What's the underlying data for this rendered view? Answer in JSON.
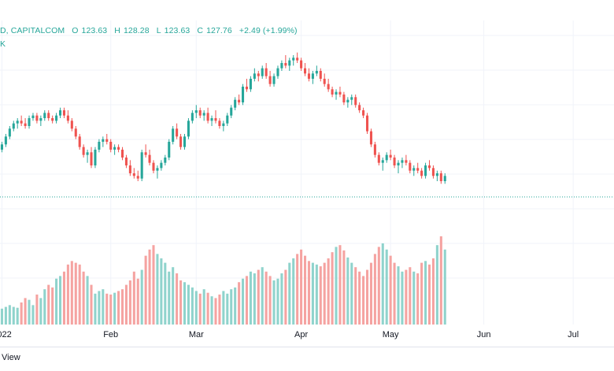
{
  "legend": {
    "symbol": "D, CAPITALCOM",
    "open_label": "O",
    "open": "123.63",
    "high_label": "H",
    "high": "128.28",
    "low_label": "L",
    "low": "123.63",
    "close_label": "C",
    "close": "127.76",
    "change": "+2.49 (+1.99%)",
    "volume_label": "K"
  },
  "footer": {
    "text": "View"
  },
  "colors": {
    "up": "#26a69a",
    "down": "#ef5350",
    "up_vol": "#8fd3cc",
    "down_vol": "#f5a3a1"
  },
  "chart_data": {
    "type": "candlestick",
    "price_range": [
      70,
      145
    ],
    "volume_range": [
      0,
      100
    ],
    "price_line": 88,
    "x_tick_labels": [
      {
        "label": "2022",
        "day": 0
      },
      {
        "label": "Feb",
        "day": 28
      },
      {
        "label": "Mar",
        "day": 50
      },
      {
        "label": "Apr",
        "day": 77
      },
      {
        "label": "May",
        "day": 100
      },
      {
        "label": "Jun",
        "day": 124
      },
      {
        "label": "Jul",
        "day": 147
      }
    ],
    "candles": [
      [
        0,
        106,
        109,
        105,
        108,
        18
      ],
      [
        1,
        108,
        112,
        107,
        111,
        20
      ],
      [
        2,
        111,
        115,
        110,
        114,
        22
      ],
      [
        3,
        114,
        117,
        113,
        116,
        20
      ],
      [
        4,
        116,
        118,
        114,
        117,
        19
      ],
      [
        5,
        117,
        119,
        115,
        116,
        25
      ],
      [
        6,
        116,
        118,
        114,
        115,
        30
      ],
      [
        7,
        115,
        119,
        114,
        118,
        28
      ],
      [
        8,
        118,
        120,
        117,
        119,
        22
      ],
      [
        9,
        119,
        120,
        116,
        117,
        34
      ],
      [
        10,
        117,
        119,
        115,
        118,
        30
      ],
      [
        11,
        118,
        121,
        117,
        120,
        40
      ],
      [
        12,
        120,
        121,
        117,
        118,
        45
      ],
      [
        13,
        118,
        119,
        116,
        117,
        42
      ],
      [
        14,
        117,
        120,
        116,
        119,
        52
      ],
      [
        15,
        119,
        122,
        118,
        121,
        55
      ],
      [
        16,
        121,
        122,
        118,
        119,
        60
      ],
      [
        17,
        119,
        121,
        116,
        117,
        68
      ],
      [
        18,
        117,
        118,
        113,
        114,
        72
      ],
      [
        19,
        114,
        115,
        110,
        111,
        70
      ],
      [
        20,
        111,
        112,
        106,
        107,
        68
      ],
      [
        21,
        107,
        108,
        103,
        104,
        60
      ],
      [
        22,
        104,
        106,
        101,
        105,
        55
      ],
      [
        23,
        105,
        107,
        99,
        100,
        45
      ],
      [
        24,
        100,
        107,
        99,
        106,
        35
      ],
      [
        25,
        106,
        110,
        105,
        109,
        38
      ],
      [
        26,
        109,
        111,
        107,
        110,
        40
      ],
      [
        27,
        110,
        112,
        108,
        109,
        35
      ],
      [
        28,
        109,
        110,
        105,
        106,
        34
      ],
      [
        29,
        106,
        108,
        104,
        107,
        36
      ],
      [
        30,
        107,
        108,
        105,
        106,
        38
      ],
      [
        31,
        106,
        107,
        102,
        103,
        40
      ],
      [
        32,
        103,
        104,
        99,
        100,
        45
      ],
      [
        33,
        100,
        102,
        96,
        97,
        50
      ],
      [
        34,
        97,
        99,
        95,
        96,
        60
      ],
      [
        35,
        96,
        98,
        94,
        95,
        52
      ],
      [
        36,
        95,
        106,
        94,
        105,
        62
      ],
      [
        37,
        105,
        108,
        103,
        104,
        78
      ],
      [
        38,
        104,
        106,
        100,
        101,
        85
      ],
      [
        39,
        101,
        102,
        97,
        98,
        90
      ],
      [
        40,
        98,
        100,
        95,
        99,
        80
      ],
      [
        41,
        99,
        102,
        98,
        101,
        75
      ],
      [
        42,
        101,
        104,
        100,
        103,
        70
      ],
      [
        43,
        103,
        110,
        102,
        109,
        60
      ],
      [
        44,
        109,
        115,
        108,
        114,
        65
      ],
      [
        45,
        114,
        116,
        110,
        111,
        58
      ],
      [
        46,
        111,
        112,
        106,
        107,
        50
      ],
      [
        47,
        107,
        112,
        106,
        111,
        48
      ],
      [
        48,
        111,
        118,
        110,
        117,
        45
      ],
      [
        49,
        117,
        121,
        116,
        120,
        42
      ],
      [
        50,
        120,
        123,
        118,
        121,
        38
      ],
      [
        51,
        121,
        122,
        118,
        119,
        35
      ],
      [
        52,
        119,
        121,
        117,
        120,
        40
      ],
      [
        53,
        120,
        122,
        116,
        117,
        36
      ],
      [
        54,
        117,
        119,
        115,
        118,
        32
      ],
      [
        55,
        118,
        121,
        116,
        117,
        30
      ],
      [
        56,
        117,
        118,
        114,
        115,
        34
      ],
      [
        57,
        115,
        117,
        113,
        116,
        38
      ],
      [
        58,
        116,
        120,
        115,
        119,
        35
      ],
      [
        59,
        119,
        123,
        118,
        122,
        40
      ],
      [
        60,
        122,
        126,
        121,
        125,
        42
      ],
      [
        61,
        125,
        127,
        123,
        124,
        48
      ],
      [
        62,
        124,
        131,
        123,
        130,
        52
      ],
      [
        63,
        130,
        133,
        128,
        129,
        55
      ],
      [
        64,
        129,
        134,
        128,
        133,
        60
      ],
      [
        65,
        133,
        137,
        132,
        135,
        58
      ],
      [
        66,
        135,
        136,
        132,
        134,
        62
      ],
      [
        67,
        134,
        138,
        133,
        137,
        65
      ],
      [
        68,
        137,
        139,
        133,
        134,
        60
      ],
      [
        69,
        134,
        136,
        130,
        131,
        55
      ],
      [
        70,
        131,
        135,
        130,
        134,
        50
      ],
      [
        71,
        134,
        138,
        133,
        137,
        52
      ],
      [
        72,
        137,
        140,
        136,
        139,
        58
      ],
      [
        73,
        139,
        142,
        137,
        138,
        62
      ],
      [
        74,
        138,
        141,
        136,
        140,
        70
      ],
      [
        75,
        140,
        142,
        138,
        141,
        75
      ],
      [
        76,
        141,
        143,
        139,
        140,
        80
      ],
      [
        77,
        140,
        141,
        136,
        137,
        85
      ],
      [
        78,
        137,
        139,
        134,
        135,
        78
      ],
      [
        79,
        135,
        137,
        132,
        133,
        72
      ],
      [
        80,
        133,
        136,
        131,
        135,
        70
      ],
      [
        81,
        135,
        138,
        134,
        136,
        68
      ],
      [
        82,
        136,
        137,
        132,
        133,
        66
      ],
      [
        83,
        133,
        135,
        130,
        131,
        70
      ],
      [
        84,
        131,
        133,
        128,
        129,
        75
      ],
      [
        85,
        129,
        130,
        126,
        127,
        82
      ],
      [
        86,
        127,
        129,
        125,
        128,
        88
      ],
      [
        87,
        128,
        130,
        126,
        127,
        90
      ],
      [
        88,
        127,
        128,
        123,
        124,
        84
      ],
      [
        89,
        124,
        126,
        122,
        125,
        76
      ],
      [
        90,
        125,
        127,
        123,
        126,
        70
      ],
      [
        91,
        126,
        127,
        122,
        123,
        65
      ],
      [
        92,
        123,
        124,
        120,
        121,
        60
      ],
      [
        93,
        121,
        122,
        118,
        119,
        55
      ],
      [
        94,
        119,
        120,
        112,
        113,
        62
      ],
      [
        95,
        113,
        114,
        107,
        108,
        70
      ],
      [
        96,
        108,
        109,
        103,
        104,
        80
      ],
      [
        97,
        104,
        105,
        100,
        101,
        88
      ],
      [
        98,
        101,
        103,
        98,
        102,
        92
      ],
      [
        99,
        102,
        105,
        101,
        104,
        85
      ],
      [
        100,
        104,
        106,
        102,
        103,
        78
      ],
      [
        101,
        103,
        104,
        99,
        100,
        70
      ],
      [
        102,
        100,
        102,
        97,
        101,
        66
      ],
      [
        103,
        101,
        103,
        99,
        102,
        60
      ],
      [
        104,
        102,
        104,
        100,
        101,
        62
      ],
      [
        105,
        101,
        102,
        97,
        98,
        65
      ],
      [
        106,
        98,
        100,
        96,
        99,
        60
      ],
      [
        107,
        99,
        101,
        97,
        98,
        58
      ],
      [
        108,
        98,
        99,
        95,
        96,
        70
      ],
      [
        109,
        96,
        101,
        95,
        100,
        72
      ],
      [
        110,
        100,
        102,
        98,
        99,
        68
      ],
      [
        111,
        99,
        100,
        95,
        96,
        75
      ],
      [
        112,
        96,
        98,
        94,
        97,
        90
      ],
      [
        113,
        97,
        98,
        93,
        94,
        100
      ],
      [
        114,
        94,
        97,
        93,
        96,
        85
      ]
    ]
  }
}
